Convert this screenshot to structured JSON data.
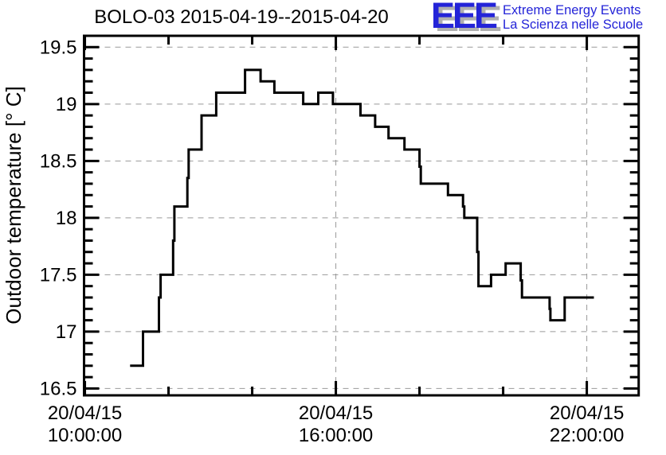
{
  "logo": {
    "acronym": "EEE",
    "tagline_line1": "Extreme Energy Events",
    "tagline_line2": "La Scienza nelle Scuole"
  },
  "colors": {
    "accent_blue": "#2424d8",
    "logo_shadow_gray": "#b0b0b0",
    "grid_gray": "#999999",
    "line_black": "#000000",
    "background": "#ffffff"
  },
  "chart_data": {
    "type": "line",
    "line_style": "step-after",
    "title": "BOLO-03 2015-04-19--2015-04-20",
    "xlabel": "",
    "ylabel": "Outdoor temperature [° C]",
    "grid": "dashed-at-major-ticks",
    "legend": "none",
    "xlim_hours": [
      9.98,
      23.24
    ],
    "ylim": [
      16.44,
      19.6
    ],
    "y_major_ticks": [
      16.5,
      17,
      17.5,
      18,
      18.5,
      19,
      19.5
    ],
    "y_major_tick_labels": [
      "16.5",
      "17",
      "17.5",
      "18",
      "18.5",
      "19",
      "19.5"
    ],
    "y_minor_tick_step": 0.1,
    "x_major_ticks_hours": [
      10,
      16,
      22
    ],
    "x_minor_ticks_hours": [
      12,
      14,
      18,
      20
    ],
    "x_tick_labels": [
      {
        "hour": 10,
        "line1": "20/04/15",
        "line2": "10:00:00"
      },
      {
        "hour": 16,
        "line1": "20/04/15",
        "line2": "16:00:00"
      },
      {
        "hour": 22,
        "line1": "20/04/15",
        "line2": "22:00:00"
      }
    ],
    "series": [
      {
        "name": "outdoor-temperature-bolo-03",
        "units": "deg C",
        "points_time_hours_vs_temp": [
          [
            11.08,
            16.7
          ],
          [
            11.39,
            17.0
          ],
          [
            11.77,
            17.3
          ],
          [
            11.81,
            17.5
          ],
          [
            12.11,
            17.8
          ],
          [
            12.14,
            18.1
          ],
          [
            12.45,
            18.35
          ],
          [
            12.48,
            18.6
          ],
          [
            12.79,
            18.9
          ],
          [
            13.14,
            19.1
          ],
          [
            13.83,
            19.3
          ],
          [
            14.2,
            19.2
          ],
          [
            14.53,
            19.1
          ],
          [
            15.22,
            19.0
          ],
          [
            15.58,
            19.1
          ],
          [
            15.93,
            19.0
          ],
          [
            16.59,
            18.9
          ],
          [
            16.94,
            18.8
          ],
          [
            17.26,
            18.7
          ],
          [
            17.64,
            18.6
          ],
          [
            18.0,
            18.45
          ],
          [
            18.03,
            18.3
          ],
          [
            18.68,
            18.2
          ],
          [
            19.04,
            18.1
          ],
          [
            19.07,
            18.0
          ],
          [
            19.38,
            17.7
          ],
          [
            19.41,
            17.4
          ],
          [
            19.71,
            17.5
          ],
          [
            20.06,
            17.6
          ],
          [
            20.42,
            17.45
          ],
          [
            20.45,
            17.3
          ],
          [
            21.11,
            17.2
          ],
          [
            21.13,
            17.1
          ],
          [
            21.47,
            17.3
          ]
        ],
        "last_sample_end_hour": 22.17
      }
    ]
  }
}
